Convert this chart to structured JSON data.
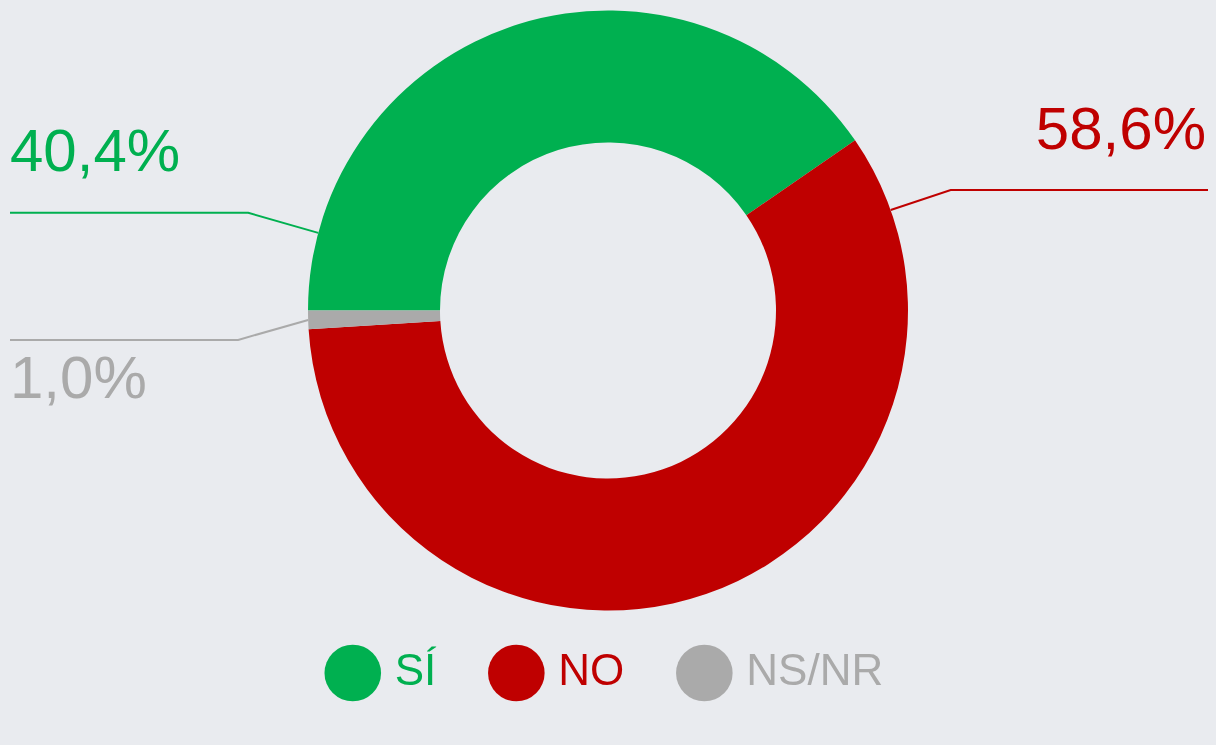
{
  "chart_data": {
    "type": "donut",
    "categories": [
      "SÍ",
      "NO",
      "NS/NR"
    ],
    "values": [
      40.4,
      58.6,
      1.0
    ],
    "colors": [
      "#00b050",
      "#bf0000",
      "#aaaaaa"
    ],
    "value_labels": [
      "40,4%",
      "58,6%",
      "1,0%"
    ],
    "legend": "bottom"
  }
}
